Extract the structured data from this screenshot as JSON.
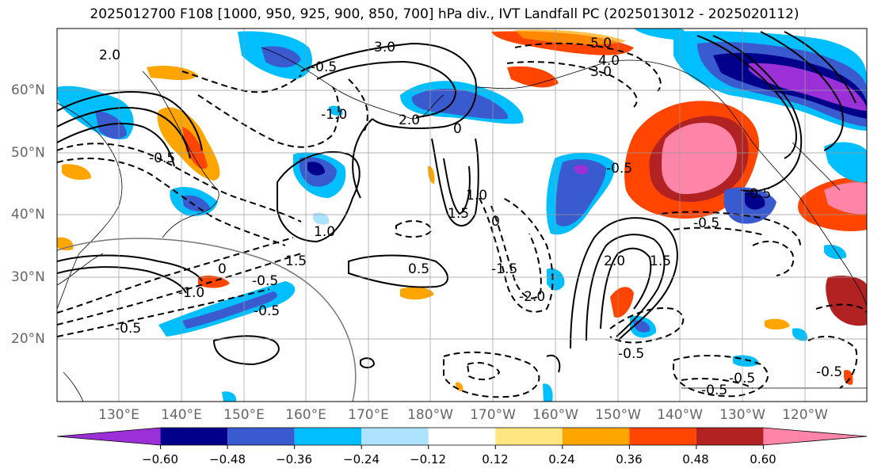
{
  "title": "2025012700 F108 [1000, 950, 925, 900, 850, 700] hPa div., IVT Landfall PC (2025013012 - 2025020112)",
  "lat_labels": [
    "60°N",
    "50°N",
    "40°N",
    "30°N",
    "20°N"
  ],
  "lon_labels": [
    "130°E",
    "140°E",
    "150°E",
    "160°E",
    "170°E",
    "180°W",
    "170°W",
    "160°W",
    "150°W",
    "140°W",
    "130°W",
    "120°W"
  ],
  "colorbar": {
    "tick_labels": [
      "−0.60",
      "−0.48",
      "−0.36",
      "−0.24",
      "−0.12",
      "0.12",
      "0.24",
      "0.36",
      "0.48",
      "0.60"
    ],
    "colors": [
      "#9b30d9",
      "#00008b",
      "#3a5bd0",
      "#00bfff",
      "#aee3ff",
      "#ffffff",
      "#ffe680",
      "#ffa500",
      "#ff4500",
      "#b22222",
      "#ff85a8"
    ]
  },
  "contour_labels": [
    "3.0",
    "2.0",
    "0",
    "-0.5",
    "5.0",
    "4.0",
    "3.0",
    "-1.0",
    "2.0",
    "1.5",
    "-0.5",
    "-1.0",
    "0",
    "1.5",
    "-2.0",
    "-1.5",
    "1.0",
    "0",
    "-0.5",
    "2.0",
    "1.5",
    "-0.5",
    "-0.5",
    "1.0",
    "-0.5",
    "0.5",
    "-0.5",
    "-0.5",
    "-0.5",
    "-0.5",
    "-0.5",
    "-0.5"
  ]
}
